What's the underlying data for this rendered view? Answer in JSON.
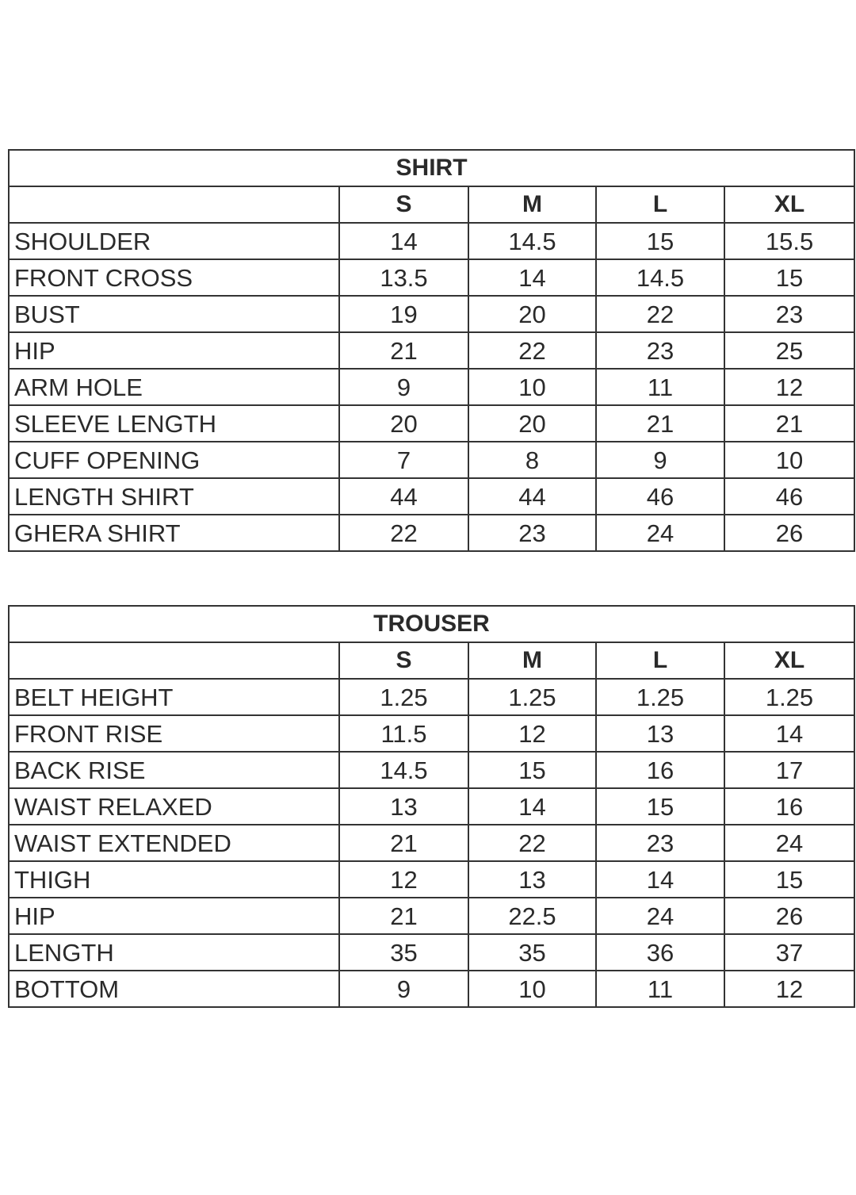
{
  "tables": [
    {
      "title": "SHIRT",
      "sizes": [
        "S",
        "M",
        "L",
        "XL"
      ],
      "rows": [
        {
          "label": "SHOULDER",
          "values": [
            "14",
            "14.5",
            "15",
            "15.5"
          ]
        },
        {
          "label": "FRONT CROSS",
          "values": [
            "13.5",
            "14",
            "14.5",
            "15"
          ]
        },
        {
          "label": "BUST",
          "values": [
            "19",
            "20",
            "22",
            "23"
          ]
        },
        {
          "label": "HIP",
          "values": [
            "21",
            "22",
            "23",
            "25"
          ]
        },
        {
          "label": "ARM HOLE",
          "values": [
            "9",
            "10",
            "11",
            "12"
          ]
        },
        {
          "label": "SLEEVE LENGTH",
          "values": [
            "20",
            "20",
            "21",
            "21"
          ]
        },
        {
          "label": "CUFF OPENING",
          "values": [
            "7",
            "8",
            "9",
            "10"
          ]
        },
        {
          "label": "LENGTH SHIRT",
          "values": [
            "44",
            "44",
            "46",
            "46"
          ]
        },
        {
          "label": "GHERA SHIRT",
          "values": [
            "22",
            "23",
            "24",
            "26"
          ]
        }
      ]
    },
    {
      "title": "TROUSER",
      "sizes": [
        "S",
        "M",
        "L",
        "XL"
      ],
      "rows": [
        {
          "label": "BELT HEIGHT",
          "values": [
            "1.25",
            "1.25",
            "1.25",
            "1.25"
          ]
        },
        {
          "label": "FRONT RISE",
          "values": [
            "11.5",
            "12",
            "13",
            "14"
          ]
        },
        {
          "label": "BACK RISE",
          "values": [
            "14.5",
            "15",
            "16",
            "17"
          ]
        },
        {
          "label": "WAIST RELAXED",
          "values": [
            "13",
            "14",
            "15",
            "16"
          ]
        },
        {
          "label": "WAIST EXTENDED",
          "values": [
            "21",
            "22",
            "23",
            "24"
          ]
        },
        {
          "label": "THIGH",
          "values": [
            "12",
            "13",
            "14",
            "15"
          ]
        },
        {
          "label": "HIP",
          "values": [
            "21",
            "22.5",
            "24",
            "26"
          ]
        },
        {
          "label": "LENGTH",
          "values": [
            "35",
            "35",
            "36",
            "37"
          ]
        },
        {
          "label": "BOTTOM",
          "values": [
            "9",
            "10",
            "11",
            "12"
          ]
        }
      ]
    }
  ]
}
